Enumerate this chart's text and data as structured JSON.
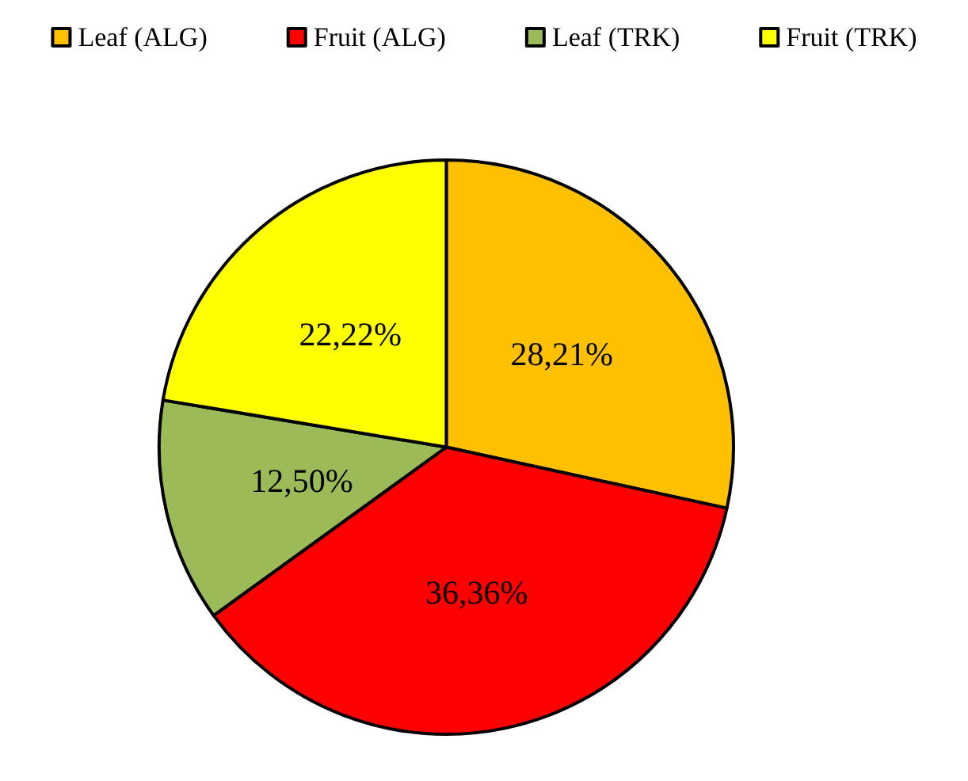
{
  "chart_data": {
    "type": "pie",
    "categories": [
      "Leaf (ALG)",
      "Fruit (ALG)",
      "Leaf (TRK)",
      "Fruit (TRK)"
    ],
    "values": [
      28.21,
      36.36,
      12.5,
      22.22
    ],
    "value_labels": [
      "28,21%",
      "36,36%",
      "12,50%",
      "22,22%"
    ],
    "colors": [
      "#ffc000",
      "#ff0000",
      "#9bbb59",
      "#ffff00"
    ],
    "legend": "top"
  }
}
